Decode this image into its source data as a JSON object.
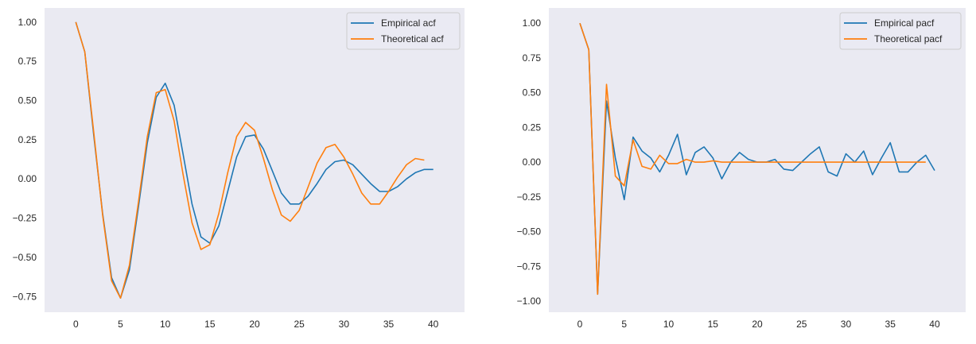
{
  "colors": {
    "background": "#eaeaf2",
    "series1": "#1f77b4",
    "series2": "#ff7f0e"
  },
  "chart_data": [
    {
      "type": "line",
      "xlim": [
        -3.5,
        43.5
      ],
      "ylim": [
        -0.85,
        1.09
      ],
      "xticks": [
        0,
        5,
        10,
        15,
        20,
        25,
        30,
        35,
        40
      ],
      "yticks": [
        -0.75,
        -0.5,
        -0.25,
        0.0,
        0.25,
        0.5,
        0.75,
        1.0
      ],
      "ytick_labels": [
        "−0.75",
        "−0.50",
        "−0.25",
        "0.00",
        "0.25",
        "0.50",
        "0.75",
        "1.00"
      ],
      "grid": false,
      "legend_position": "top-right",
      "series": [
        {
          "name": "Empirical acf",
          "x_start": 0,
          "values": [
            1.0,
            0.81,
            0.28,
            -0.22,
            -0.63,
            -0.76,
            -0.58,
            -0.18,
            0.23,
            0.52,
            0.61,
            0.47,
            0.16,
            -0.16,
            -0.37,
            -0.41,
            -0.3,
            -0.08,
            0.14,
            0.27,
            0.28,
            0.19,
            0.05,
            -0.09,
            -0.16,
            -0.16,
            -0.11,
            -0.03,
            0.06,
            0.11,
            0.12,
            0.09,
            0.03,
            -0.03,
            -0.08,
            -0.08,
            -0.05,
            0.0,
            0.04,
            0.06,
            0.06
          ]
        },
        {
          "name": "Theoretical acf",
          "x_start": 0,
          "values": [
            1.0,
            0.81,
            0.3,
            -0.23,
            -0.65,
            -0.76,
            -0.55,
            -0.15,
            0.27,
            0.55,
            0.57,
            0.37,
            0.03,
            -0.28,
            -0.45,
            -0.42,
            -0.22,
            0.04,
            0.27,
            0.36,
            0.31,
            0.13,
            -0.07,
            -0.23,
            -0.27,
            -0.2,
            -0.05,
            0.1,
            0.2,
            0.22,
            0.14,
            0.03,
            -0.09,
            -0.16,
            -0.16,
            -0.08,
            0.01,
            0.09,
            0.13,
            0.12
          ]
        }
      ]
    },
    {
      "type": "line",
      "xlim": [
        -3.5,
        43.5
      ],
      "ylim": [
        -1.08,
        1.11
      ],
      "xticks": [
        0,
        5,
        10,
        15,
        20,
        25,
        30,
        35,
        40
      ],
      "yticks": [
        -1.0,
        -0.75,
        -0.5,
        -0.25,
        0.0,
        0.25,
        0.5,
        0.75,
        1.0
      ],
      "ytick_labels": [
        "−1.00",
        "−0.75",
        "−0.50",
        "−0.25",
        "0.00",
        "0.25",
        "0.50",
        "0.75",
        "1.00"
      ],
      "grid": false,
      "legend_position": "top-right",
      "series": [
        {
          "name": "Empirical pacf",
          "x_start": 0,
          "values": [
            1.0,
            0.81,
            -0.95,
            0.44,
            0.03,
            -0.27,
            0.18,
            0.08,
            0.03,
            -0.07,
            0.05,
            0.2,
            -0.09,
            0.07,
            0.11,
            0.03,
            -0.12,
            0.0,
            0.07,
            0.02,
            0.0,
            0.0,
            0.02,
            -0.05,
            -0.06,
            0.0,
            0.06,
            0.11,
            -0.07,
            -0.1,
            0.06,
            0.0,
            0.08,
            -0.09,
            0.03,
            0.14,
            -0.07,
            -0.07,
            0.0,
            0.05,
            -0.06
          ]
        },
        {
          "name": "Theoretical pacf",
          "x_start": 0,
          "values": [
            1.0,
            0.81,
            -0.95,
            0.56,
            -0.1,
            -0.17,
            0.16,
            -0.03,
            -0.05,
            0.05,
            -0.01,
            -0.01,
            0.02,
            0.0,
            0.0,
            0.01,
            0.0,
            0.0,
            0.0,
            0.0,
            0.0,
            0.0,
            0.0,
            0.0,
            0.0,
            0.0,
            0.0,
            0.0,
            0.0,
            0.0,
            0.0,
            0.0,
            0.0,
            0.0,
            0.0,
            0.0,
            0.0,
            0.0,
            0.0,
            0.0
          ]
        }
      ]
    }
  ]
}
